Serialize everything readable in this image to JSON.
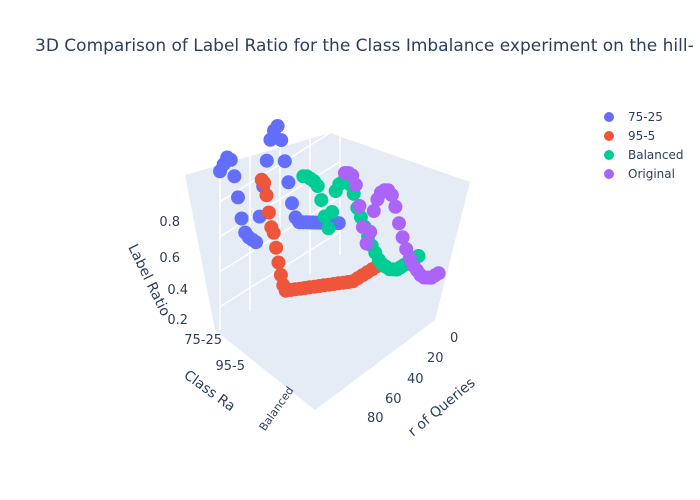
{
  "chart_data": {
    "type": "scatter3d",
    "title": "3D Comparison of Label Ratio for the Class Imbalance experiment on the hill-",
    "axes": {
      "x": {
        "title": "Number of Queries",
        "title_visible": "r of Queries",
        "ticks": [
          "0",
          "20",
          "40",
          "60",
          "80"
        ],
        "range": [
          0,
          100
        ]
      },
      "y": {
        "title": "Class Ratio",
        "title_visible": "Class Ra",
        "ticks": [
          "75-25",
          "95-5",
          "Balanced"
        ]
      },
      "z": {
        "title": "Label Ratio",
        "ticks": [
          "0.2",
          "0.4",
          "0.6",
          "0.8"
        ],
        "range": [
          0.2,
          0.95
        ]
      }
    },
    "legend": {
      "placement": "top-right"
    },
    "series": [
      {
        "name": "75-25",
        "color": "#636efa",
        "category": 0,
        "points": [
          [
            0,
            0.88
          ],
          [
            3,
            0.9
          ],
          [
            6,
            0.92
          ],
          [
            9,
            0.9
          ],
          [
            12,
            0.82
          ],
          [
            15,
            0.72
          ],
          [
            18,
            0.62
          ],
          [
            21,
            0.55
          ],
          [
            24,
            0.52
          ],
          [
            27,
            0.5
          ],
          [
            30,
            0.48
          ],
          [
            33,
            0.58
          ],
          [
            36,
            0.7
          ],
          [
            39,
            0.8
          ],
          [
            42,
            0.88
          ],
          [
            45,
            0.91
          ],
          [
            48,
            0.92
          ],
          [
            51,
            0.85
          ],
          [
            54,
            0.75
          ],
          [
            57,
            0.65
          ],
          [
            60,
            0.55
          ],
          [
            63,
            0.48
          ],
          [
            66,
            0.45
          ],
          [
            69,
            0.44
          ],
          [
            72,
            0.43
          ],
          [
            75,
            0.42
          ],
          [
            78,
            0.41
          ],
          [
            81,
            0.4
          ],
          [
            84,
            0.39
          ],
          [
            87,
            0.38
          ],
          [
            90,
            0.37
          ],
          [
            93,
            0.36
          ],
          [
            96,
            0.35
          ],
          [
            99,
            0.34
          ]
        ]
      },
      {
        "name": "95-5",
        "color": "#ef553b",
        "category": 1,
        "points": [
          [
            0,
            0.88
          ],
          [
            2,
            0.86
          ],
          [
            4,
            0.8
          ],
          [
            6,
            0.72
          ],
          [
            8,
            0.65
          ],
          [
            10,
            0.62
          ],
          [
            12,
            0.55
          ],
          [
            14,
            0.48
          ],
          [
            16,
            0.42
          ],
          [
            18,
            0.37
          ],
          [
            20,
            0.34
          ],
          [
            24,
            0.33
          ],
          [
            28,
            0.32
          ],
          [
            32,
            0.31
          ],
          [
            36,
            0.3
          ],
          [
            40,
            0.29
          ],
          [
            44,
            0.28
          ],
          [
            48,
            0.27
          ],
          [
            52,
            0.26
          ],
          [
            56,
            0.25
          ],
          [
            60,
            0.24
          ],
          [
            64,
            0.23
          ],
          [
            68,
            0.22
          ],
          [
            72,
            0.21
          ],
          [
            76,
            0.2
          ],
          [
            80,
            0.2
          ],
          [
            84,
            0.2
          ],
          [
            88,
            0.2
          ],
          [
            92,
            0.2
          ],
          [
            96,
            0.2
          ]
        ]
      },
      {
        "name": "Balanced",
        "color": "#00cc96",
        "category": 2,
        "points": [
          [
            0,
            0.93
          ],
          [
            3,
            0.92
          ],
          [
            6,
            0.9
          ],
          [
            9,
            0.88
          ],
          [
            12,
            0.85
          ],
          [
            15,
            0.78
          ],
          [
            18,
            0.7
          ],
          [
            21,
            0.64
          ],
          [
            24,
            0.7
          ],
          [
            27,
            0.78
          ],
          [
            30,
            0.8
          ],
          [
            33,
            0.8
          ],
          [
            36,
            0.79
          ],
          [
            39,
            0.77
          ],
          [
            42,
            0.72
          ],
          [
            45,
            0.65
          ],
          [
            48,
            0.6
          ],
          [
            51,
            0.55
          ],
          [
            54,
            0.5
          ],
          [
            57,
            0.45
          ],
          [
            60,
            0.41
          ],
          [
            63,
            0.37
          ],
          [
            66,
            0.34
          ],
          [
            69,
            0.32
          ],
          [
            72,
            0.3
          ],
          [
            75,
            0.29
          ],
          [
            78,
            0.28
          ],
          [
            81,
            0.28
          ],
          [
            84,
            0.28
          ],
          [
            87,
            0.28
          ],
          [
            90,
            0.28
          ],
          [
            93,
            0.28
          ],
          [
            96,
            0.28
          ]
        ]
      },
      {
        "name": "Original",
        "color": "#ab63fa",
        "category": 3,
        "points": [
          [
            0,
            0.98
          ],
          [
            3,
            0.97
          ],
          [
            6,
            0.95
          ],
          [
            9,
            0.9
          ],
          [
            12,
            0.8
          ],
          [
            15,
            0.7
          ],
          [
            18,
            0.62
          ],
          [
            21,
            0.66
          ],
          [
            24,
            0.74
          ],
          [
            27,
            0.78
          ],
          [
            30,
            0.8
          ],
          [
            33,
            0.8
          ],
          [
            36,
            0.79
          ],
          [
            39,
            0.76
          ],
          [
            42,
            0.7
          ],
          [
            45,
            0.62
          ],
          [
            48,
            0.55
          ],
          [
            51,
            0.49
          ],
          [
            54,
            0.44
          ],
          [
            57,
            0.4
          ],
          [
            60,
            0.37
          ],
          [
            63,
            0.34
          ],
          [
            66,
            0.32
          ],
          [
            69,
            0.31
          ],
          [
            72,
            0.3
          ],
          [
            75,
            0.3
          ],
          [
            78,
            0.3
          ]
        ]
      }
    ]
  }
}
